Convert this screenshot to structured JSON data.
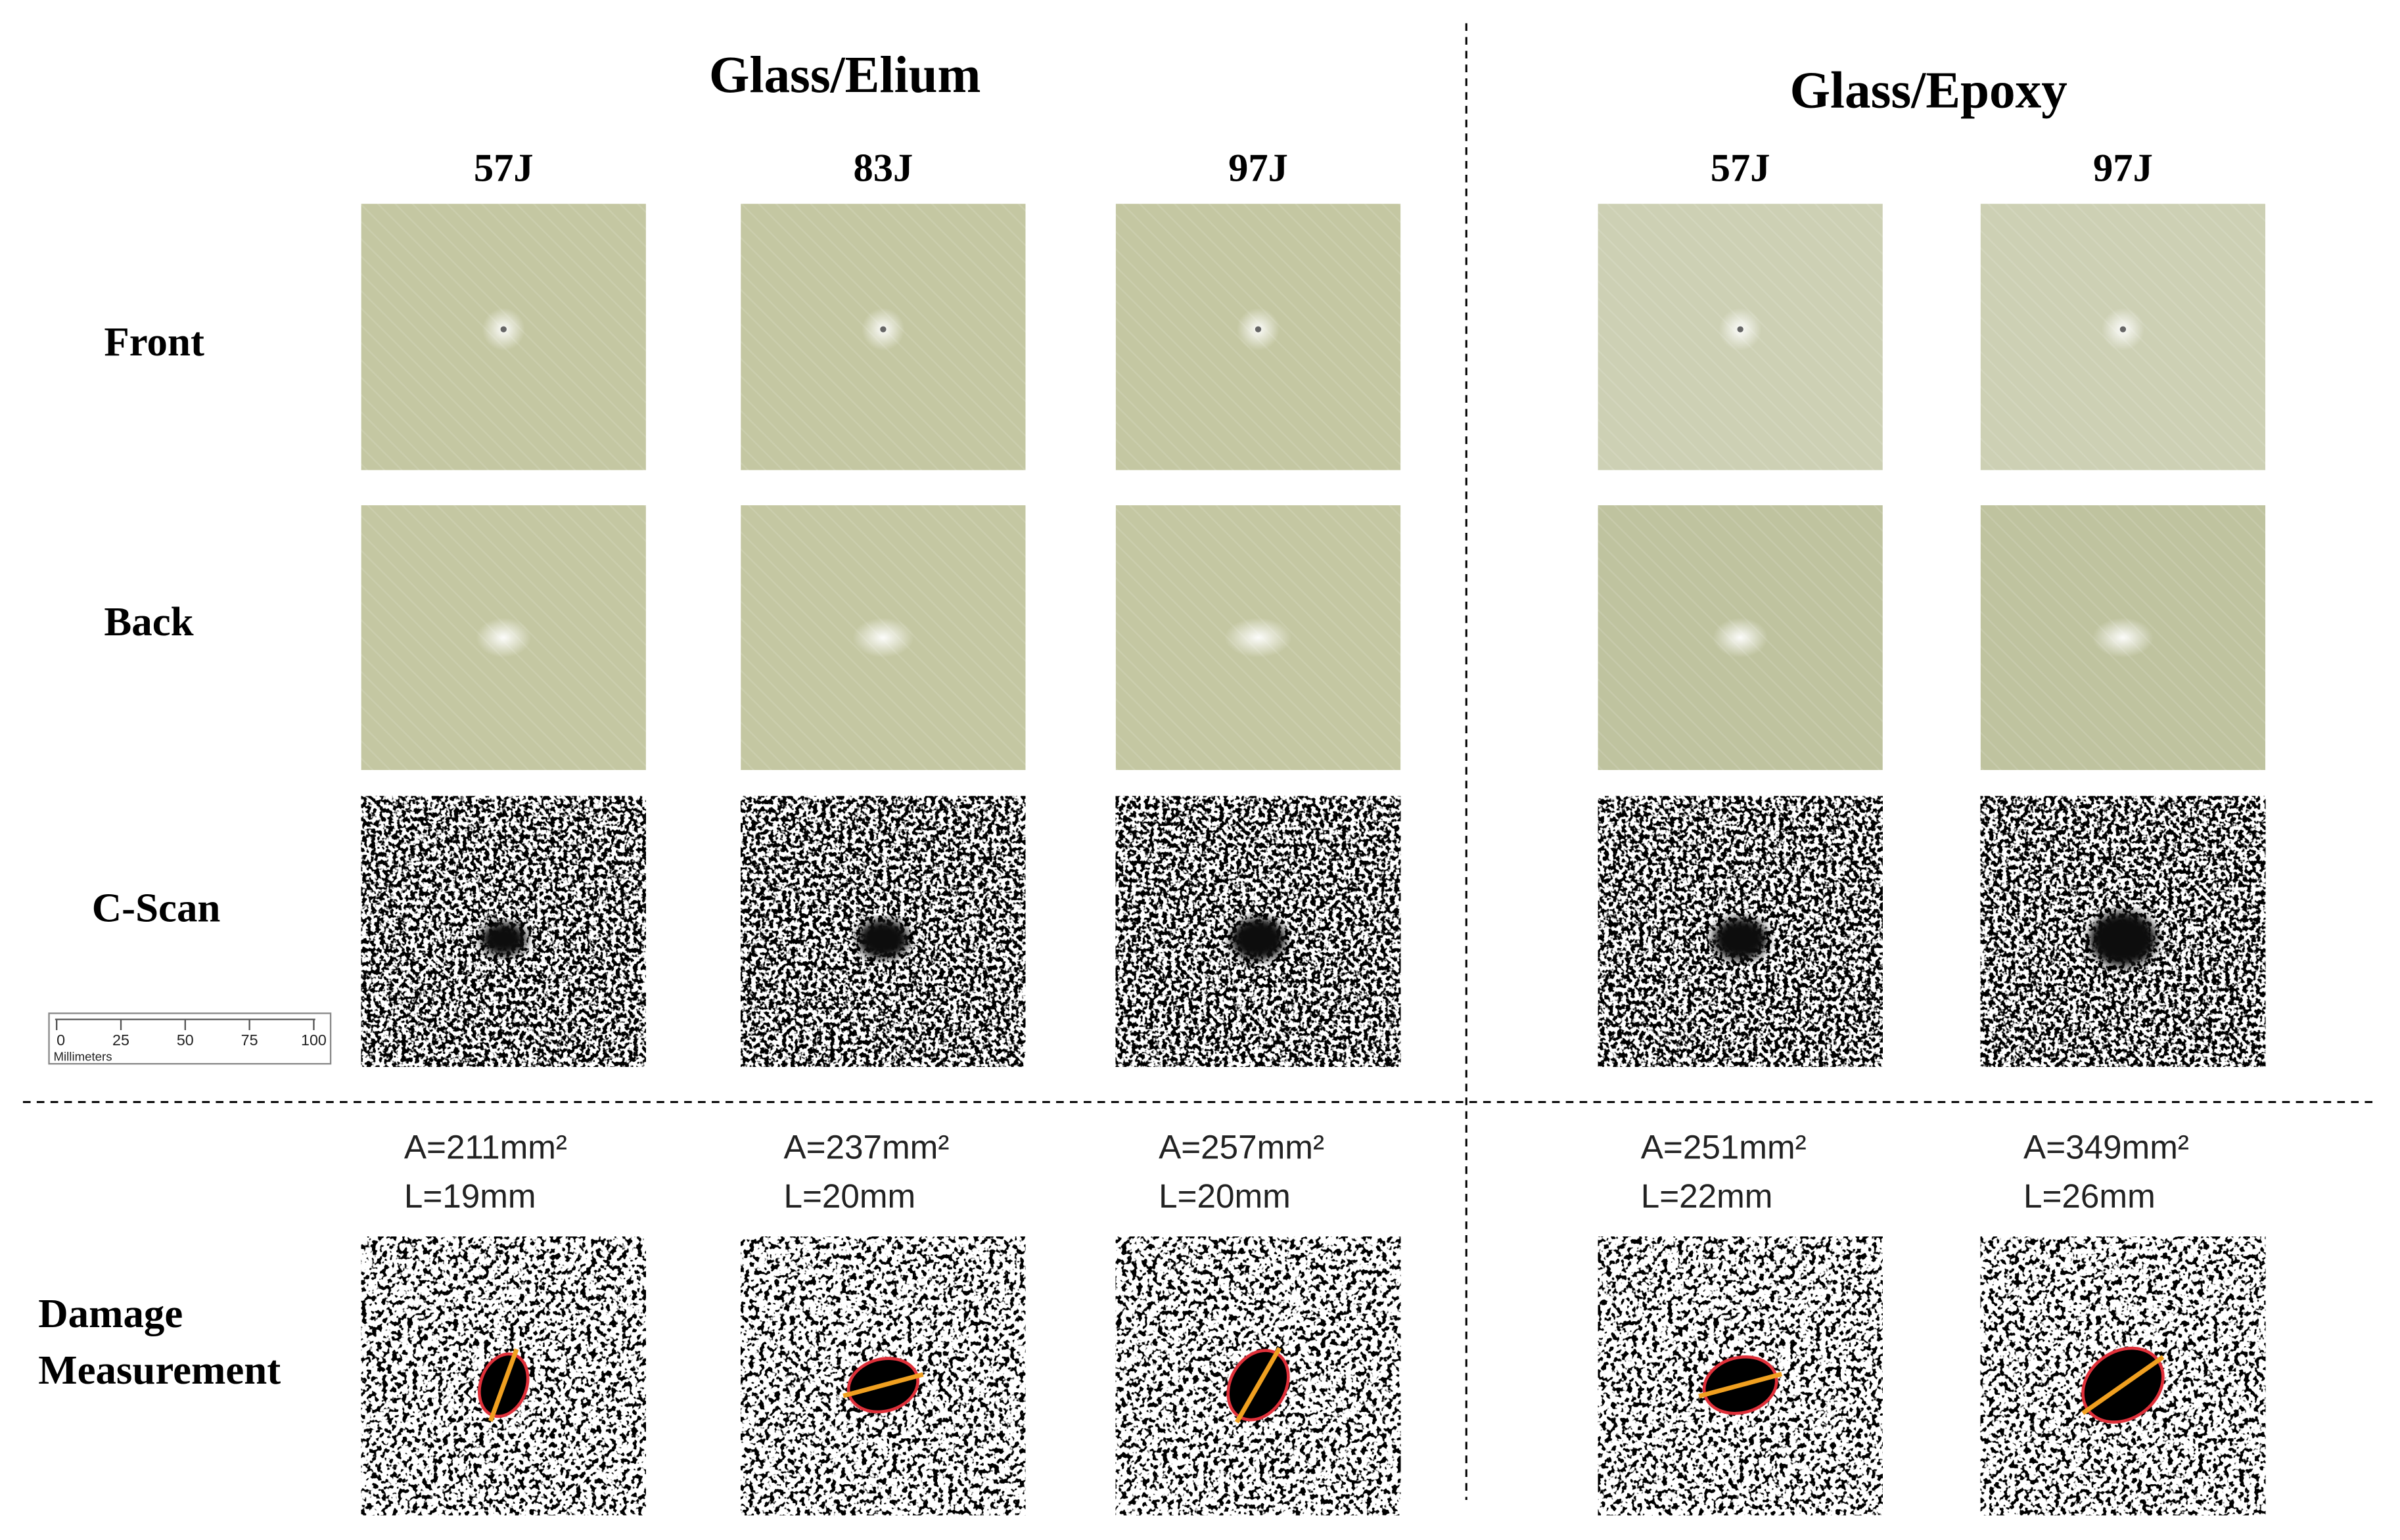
{
  "groups": [
    {
      "title": "Glass/Elium",
      "samples": [
        {
          "energy": "57J",
          "area": "A=211mm²",
          "length": "L=19mm"
        },
        {
          "energy": "83J",
          "area": "A=237mm²",
          "length": "L=20mm"
        },
        {
          "energy": "97J",
          "area": "A=257mm²",
          "length": "L=20mm"
        }
      ]
    },
    {
      "title": "Glass/Epoxy",
      "samples": [
        {
          "energy": "57J",
          "area": "A=251mm²",
          "length": "L=22mm"
        },
        {
          "energy": "97J",
          "area": "A=349mm²",
          "length": "L=26mm"
        }
      ]
    }
  ],
  "row_labels": [
    "Front",
    "Back",
    "C-Scan"
  ],
  "damage_label": [
    "Damage",
    "Measurement"
  ],
  "scale_bar": {
    "ticks": [
      "0",
      "25",
      "50",
      "75",
      "100"
    ],
    "unit": "Millimeters"
  }
}
